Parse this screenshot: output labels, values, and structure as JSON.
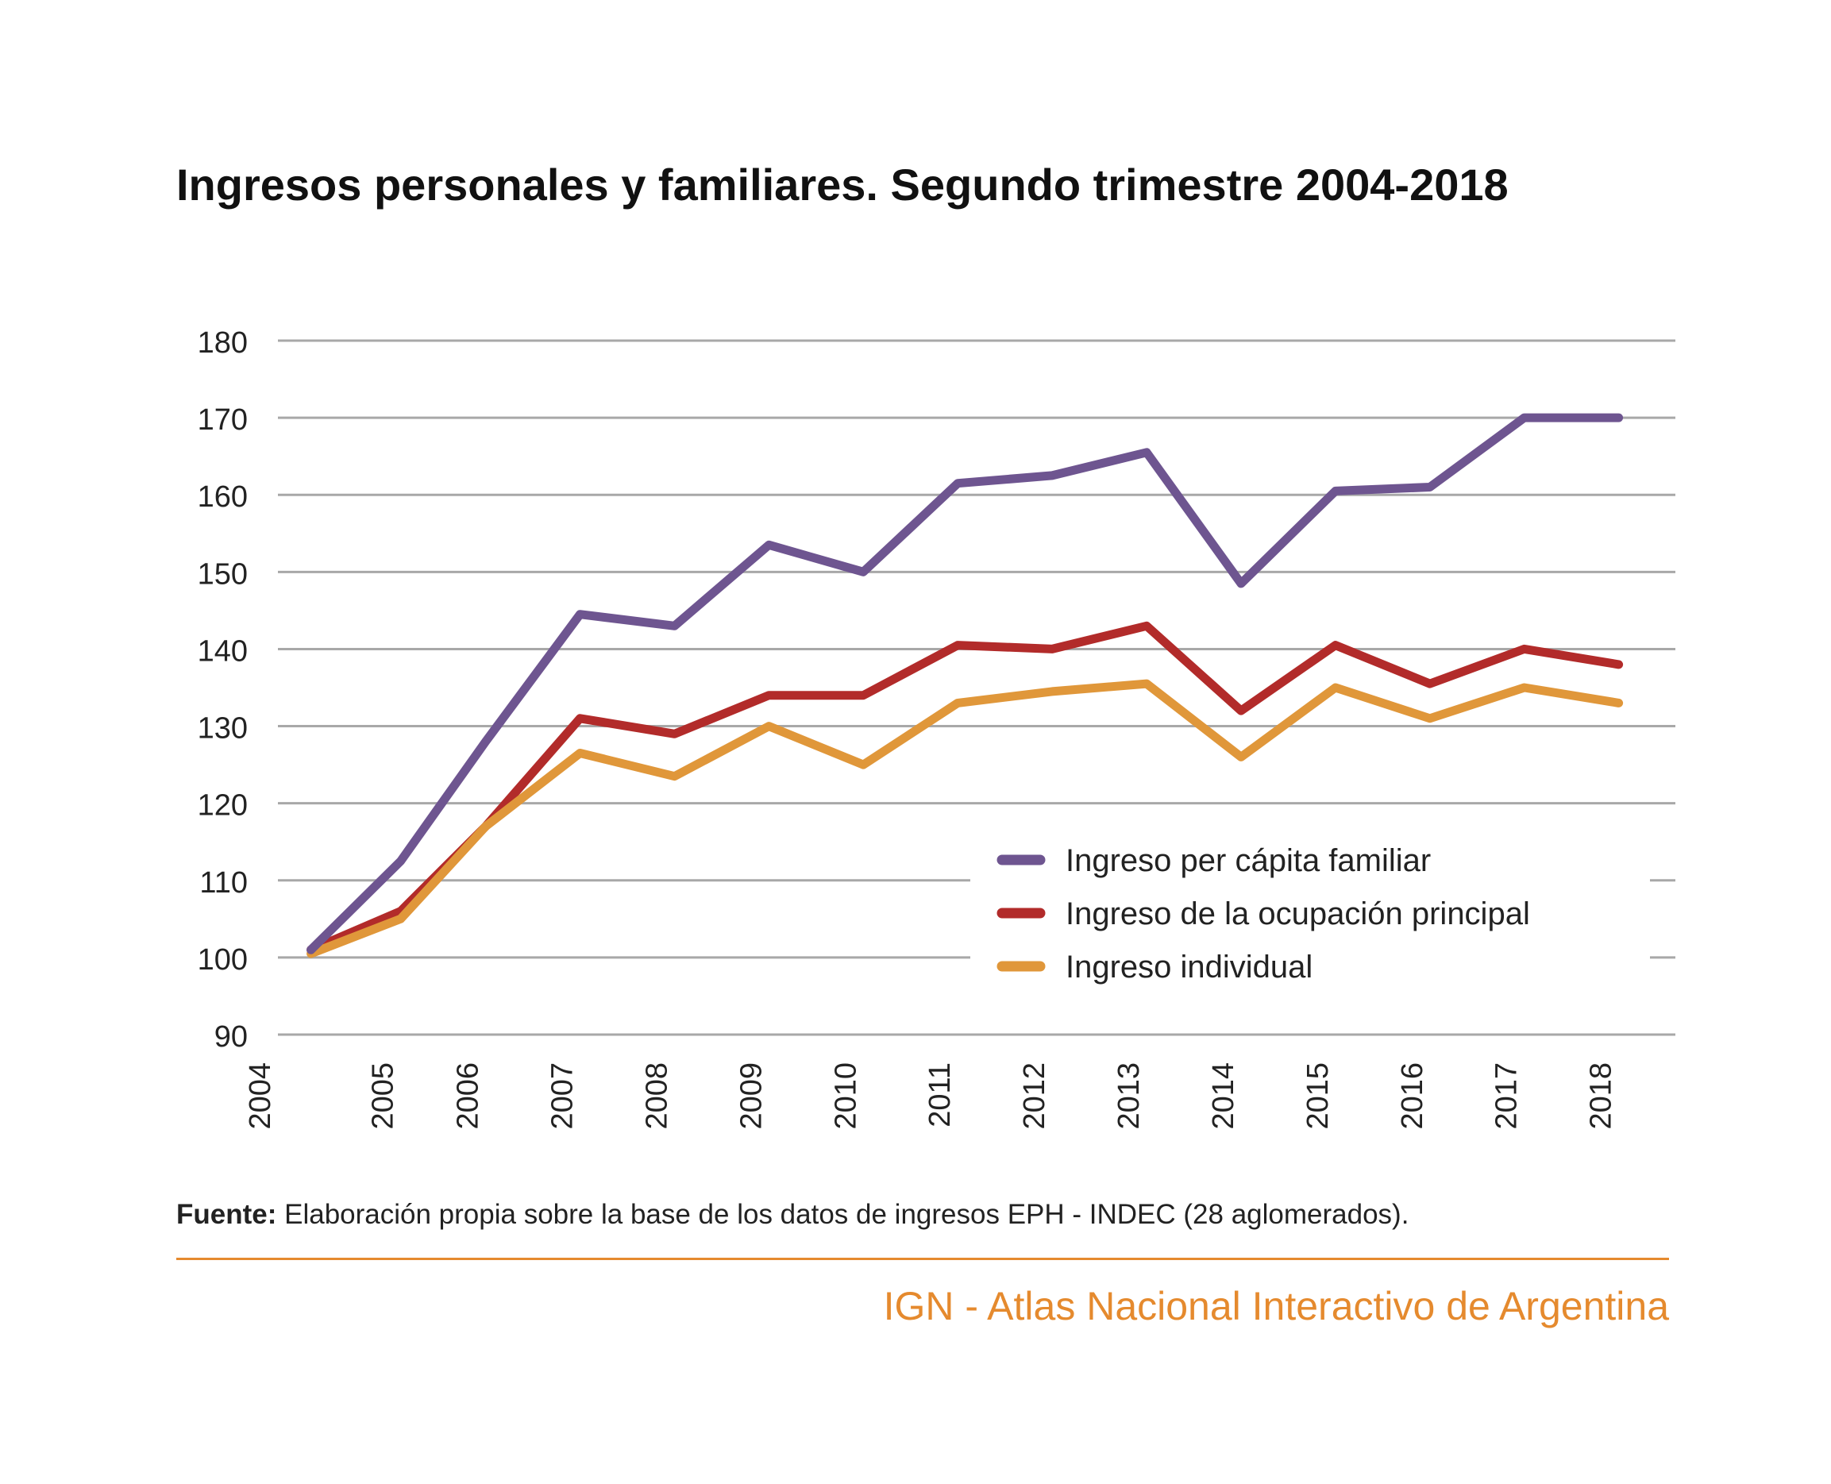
{
  "chart_data": {
    "type": "line",
    "title": "Ingresos personales y familiares. Segundo trimestre 2004-2018",
    "ylim": [
      90,
      180
    ],
    "yticks": [
      90,
      100,
      110,
      120,
      130,
      140,
      150,
      160,
      170,
      180
    ],
    "xlim": [
      2004,
      2018.8
    ],
    "xticks": [
      "2004",
      "2005",
      "2006",
      "2007",
      "2008",
      "2009",
      "2010",
      "2011",
      "2012",
      "2013",
      "2014",
      "2015",
      "2016",
      "2017",
      "2018"
    ],
    "grid": true,
    "legend_position": "bottom-right",
    "series": [
      {
        "name": "Ingreso per cápita familiar",
        "color": "#6e5590",
        "x": [
          2004.35,
          2005.3,
          2006.2,
          2007.2,
          2008.2,
          2009.2,
          2010.2,
          2011.2,
          2012.2,
          2013.2,
          2014.2,
          2015.2,
          2016.2,
          2017.2,
          2018.2
        ],
        "y": [
          101,
          112.5,
          128,
          144.5,
          143,
          153.5,
          150,
          161.5,
          162.5,
          165.5,
          148.5,
          160.5,
          161,
          170,
          170
        ]
      },
      {
        "name": "Ingreso de la ocupación principal",
        "color": "#b22b2a",
        "x": [
          2004.35,
          2005.3,
          2006.2,
          2007.2,
          2008.2,
          2009.2,
          2010.2,
          2011.2,
          2012.2,
          2013.2,
          2014.2,
          2015.2,
          2016.2,
          2017.2,
          2018.2
        ],
        "y": [
          101,
          106,
          117,
          131,
          129,
          134,
          134,
          140.5,
          140,
          143,
          132,
          140.5,
          135.5,
          140,
          138
        ]
      },
      {
        "name": "Ingreso individual",
        "color": "#e0973a",
        "x": [
          2004.35,
          2005.3,
          2006.2,
          2007.2,
          2008.2,
          2009.2,
          2010.2,
          2011.2,
          2012.2,
          2013.2,
          2014.2,
          2015.2,
          2016.2,
          2017.2,
          2018.2
        ],
        "y": [
          100.5,
          105,
          117,
          126.5,
          123.5,
          130,
          125,
          133,
          134.5,
          135.5,
          126,
          135,
          131,
          135,
          133
        ]
      }
    ]
  },
  "source": {
    "label": "Fuente:",
    "text": " Elaboración propia sobre la base de los datos de ingresos EPH - INDEC (28 aglomerados)."
  },
  "footer": {
    "credit": "IGN - Atlas Nacional Interactivo de Argentina",
    "accent_color": "#e58a2e"
  }
}
